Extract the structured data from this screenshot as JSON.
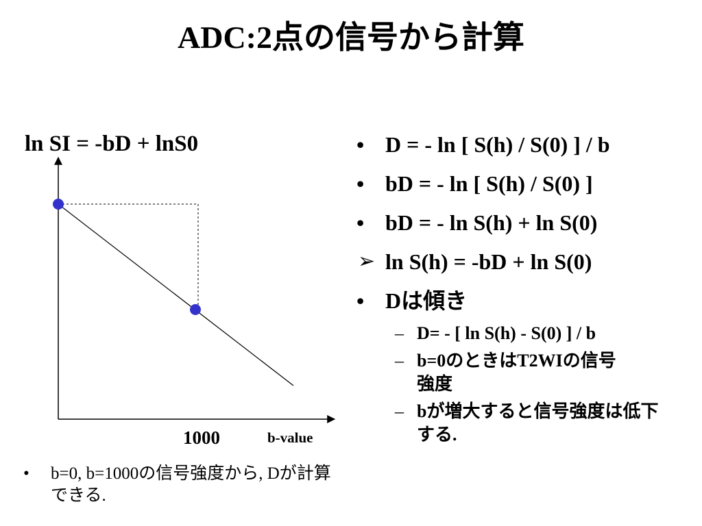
{
  "title": "ADC:2点の信号から計算",
  "equation": "ln SI = -bD + lnS0",
  "graph": {
    "tick_label": "1000",
    "axis_label": "b-value"
  },
  "bottom_note": {
    "bullet": "•",
    "text": "b=0, b=1000の信号強度から, Dが計算できる."
  },
  "right_list": {
    "items": [
      {
        "marker": "•",
        "text": "D = - ln [ S(h) / S(0) ] / b"
      },
      {
        "marker": "•",
        "text": "bD = - ln [ S(h) / S(0) ]"
      },
      {
        "marker": "•",
        "text": "bD = - ln S(h) + ln S(0)"
      },
      {
        "marker": "➢",
        "text": "ln S(h) = -bD + ln S(0)"
      },
      {
        "marker": "•",
        "text": "Dは傾き"
      }
    ],
    "sub_items": [
      {
        "marker": "–",
        "text": "D= - [ ln S(h) - S(0) ] / b"
      },
      {
        "marker": "–",
        "text": "b=0のときはT2WIの信号強度"
      },
      {
        "marker": "–",
        "text": "bが増大すると信号強度は低下する."
      }
    ]
  },
  "colors": {
    "point": "#3333cc",
    "line": "#000000"
  }
}
